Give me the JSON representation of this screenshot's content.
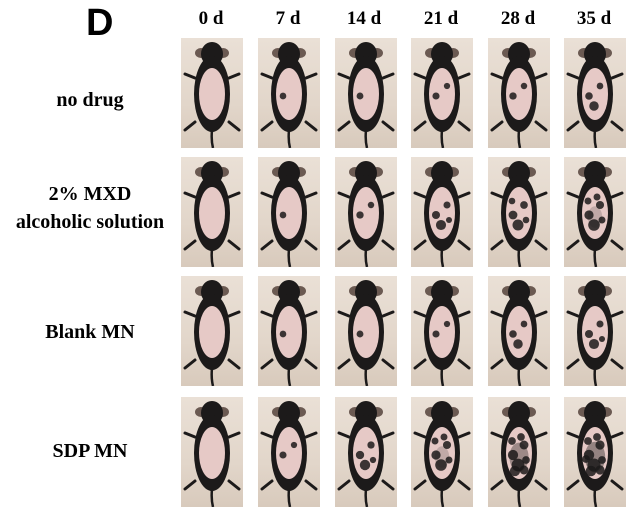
{
  "panel_letter": "D",
  "timepoints": [
    "0 d",
    "7 d",
    "14 d",
    "21 d",
    "28 d",
    "35 d"
  ],
  "groups": [
    {
      "label_lines": [
        "no drug"
      ],
      "regrowth_level": [
        0,
        0.05,
        0.1,
        0.15,
        0.2,
        0.25
      ]
    },
    {
      "label_lines": [
        "2% MXD",
        "alcoholic solution"
      ],
      "regrowth_level": [
        0,
        0.05,
        0.2,
        0.35,
        0.5,
        0.6
      ]
    },
    {
      "label_lines": [
        "Blank MN"
      ],
      "regrowth_level": [
        0,
        0.05,
        0.1,
        0.15,
        0.25,
        0.35
      ]
    },
    {
      "label_lines": [
        "SDP MN"
      ],
      "regrowth_level": [
        0,
        0.15,
        0.4,
        0.6,
        0.8,
        0.85
      ]
    }
  ],
  "colors": {
    "fur": "#1c1a1a",
    "shaved_skin": "#e6c9c6",
    "background": "#e3d8cc"
  }
}
